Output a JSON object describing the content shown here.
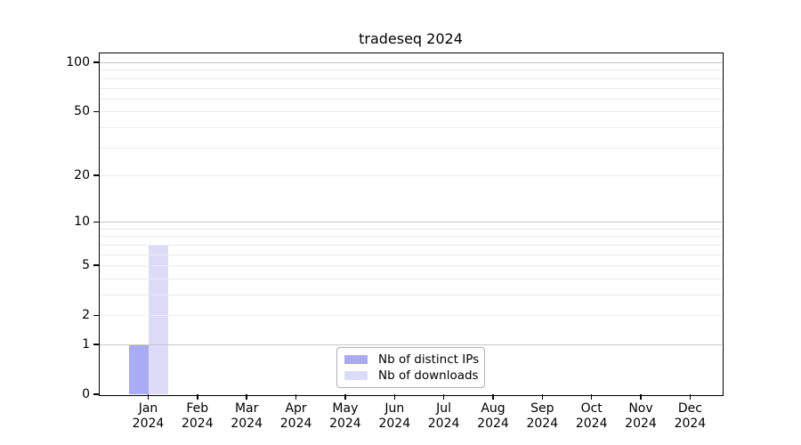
{
  "title": "tradeseq 2024",
  "legend": {
    "items": [
      {
        "label": "Nb of distinct IPs",
        "color": "#aaaaf5"
      },
      {
        "label": "Nb of downloads",
        "color": "#dcdcf8"
      }
    ]
  },
  "y_axis": {
    "tick_labels": [
      "0",
      "1",
      "2",
      "5",
      "10",
      "20",
      "50",
      "100"
    ],
    "tick_values": [
      0,
      1,
      2,
      5,
      10,
      20,
      50,
      100
    ],
    "scale": "log1p",
    "range": [
      0,
      100
    ],
    "gridlines": {
      "major_values": [
        1,
        10,
        100
      ],
      "minor_values": [
        2,
        3,
        4,
        5,
        6,
        7,
        8,
        9,
        20,
        30,
        40,
        50,
        60,
        70,
        80,
        90
      ],
      "major_color": "#c6c6c6",
      "minor_color": "#ebebeb"
    }
  },
  "x_axis": {
    "months": [
      "Jan",
      "Feb",
      "Mar",
      "Apr",
      "May",
      "Jun",
      "Jul",
      "Aug",
      "Sep",
      "Oct",
      "Nov",
      "Dec"
    ],
    "year": "2024"
  },
  "chart_data": {
    "type": "bar",
    "title": "tradeseq 2024",
    "categories": [
      "Jan 2024",
      "Feb 2024",
      "Mar 2024",
      "Apr 2024",
      "May 2024",
      "Jun 2024",
      "Jul 2024",
      "Aug 2024",
      "Sep 2024",
      "Oct 2024",
      "Nov 2024",
      "Dec 2024"
    ],
    "series": [
      {
        "name": "Nb of distinct IPs",
        "color": "#aaaaf5",
        "values": [
          1,
          0,
          0,
          0,
          0,
          0,
          0,
          0,
          0,
          0,
          0,
          0
        ]
      },
      {
        "name": "Nb of downloads",
        "color": "#dcdcf8",
        "values": [
          7,
          0,
          0,
          0,
          0,
          0,
          0,
          0,
          0,
          0,
          0,
          0
        ]
      }
    ],
    "xlabel": "",
    "ylabel": "",
    "yticks": [
      0,
      1,
      2,
      5,
      10,
      20,
      50,
      100
    ],
    "ylim": [
      0,
      100
    ],
    "yscale": "log1p",
    "grid": "horizontal",
    "legend_position": "inside-bottom-center"
  }
}
